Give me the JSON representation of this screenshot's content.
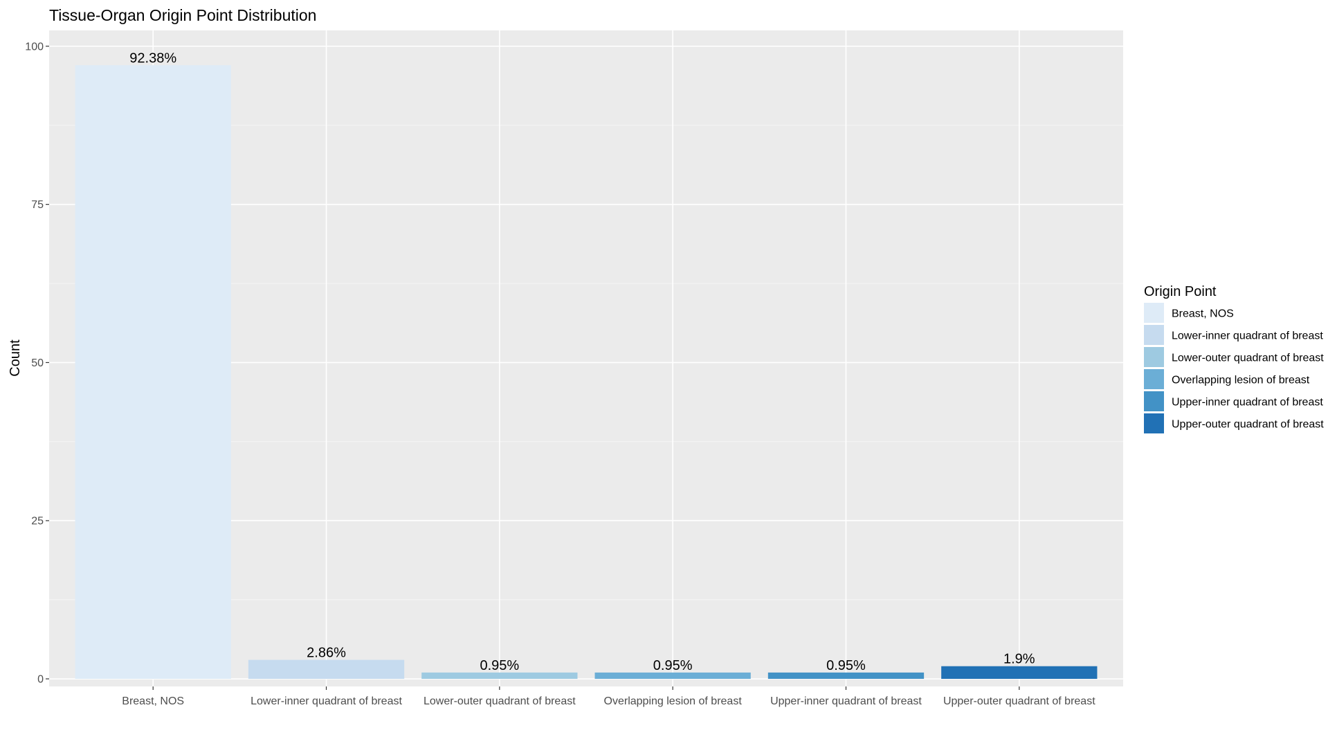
{
  "chart_data": {
    "type": "bar",
    "title": "Tissue-Organ Origin Point Distribution",
    "xlabel": "",
    "ylabel": "Count",
    "ylim": [
      -1.2,
      102.5
    ],
    "yticks": [
      0,
      25,
      50,
      75,
      100
    ],
    "grid": true,
    "legend_position": "right",
    "categories": [
      "Breast, NOS",
      "Lower-inner quadrant of breast",
      "Lower-outer quadrant of breast",
      "Overlapping lesion of breast",
      "Upper-inner quadrant of breast",
      "Upper-outer quadrant of breast"
    ],
    "values": [
      97,
      3,
      1,
      1,
      1,
      2
    ],
    "labels": [
      "92.38%",
      "2.86%",
      "0.95%",
      "0.95%",
      "0.95%",
      "1.9%"
    ],
    "colors": [
      "#deebf7",
      "#c6dbef",
      "#9ecae1",
      "#6baed6",
      "#4292c6",
      "#2171b5"
    ],
    "legend": {
      "title": "Origin Point",
      "entries": [
        "Breast, NOS",
        "Lower-inner quadrant of breast",
        "Lower-outer quadrant of breast",
        "Overlapping lesion of breast",
        "Upper-inner quadrant of breast",
        "Upper-outer quadrant of breast"
      ]
    }
  },
  "style": {
    "panel_background": "#ebebeb",
    "grid_major": "#ffffff",
    "grid_minor": "#f5f5f5",
    "axis_text": "#4d4d4d",
    "tick": "#333333"
  }
}
